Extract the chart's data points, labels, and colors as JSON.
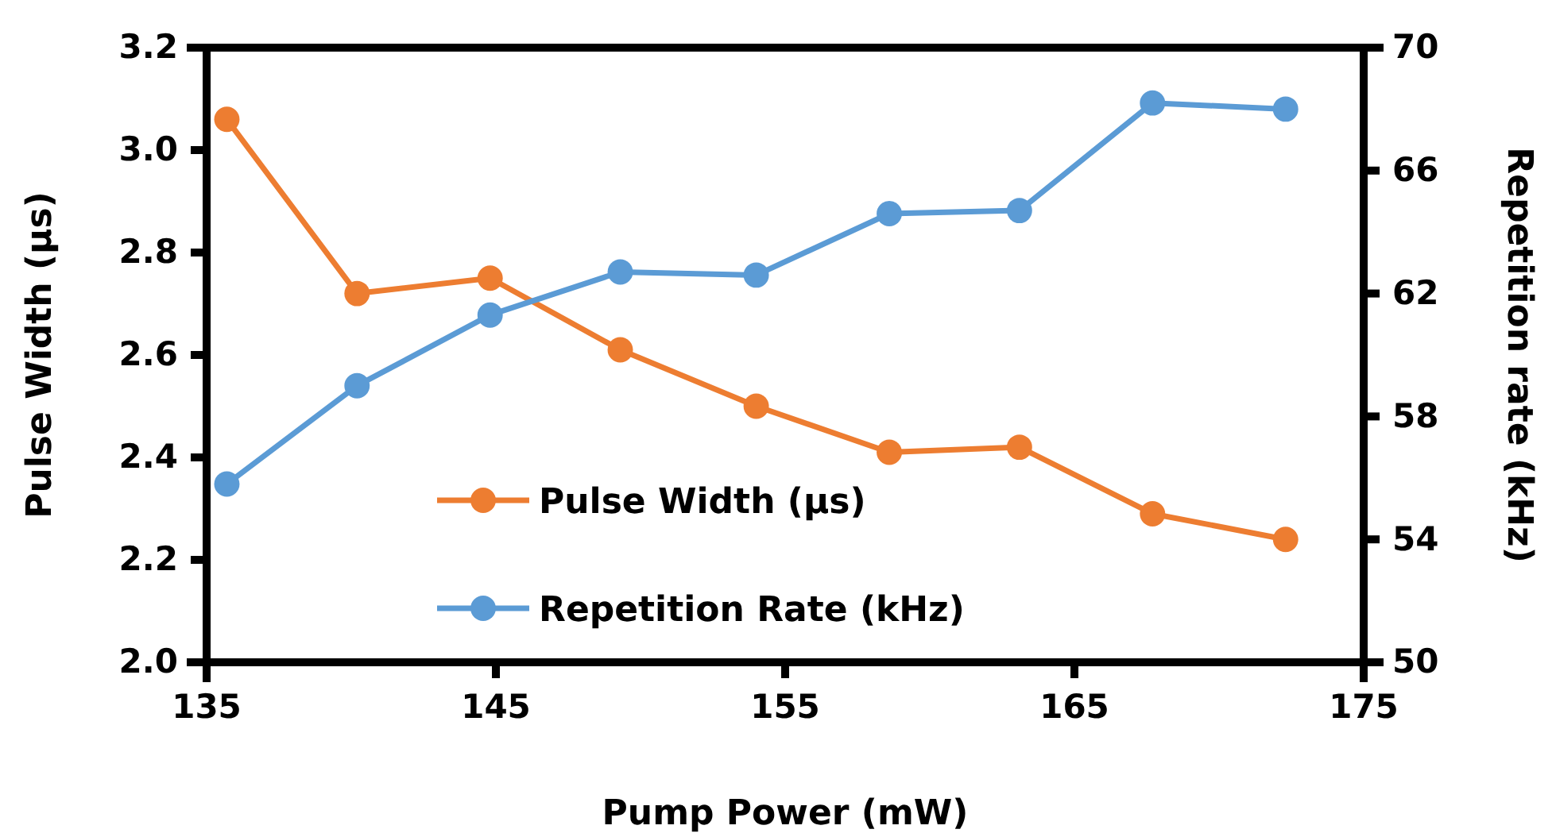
{
  "chart_data": {
    "type": "line",
    "xlabel": "Pump Power (mW)",
    "ylabel": "Pulse Width (µs)",
    "y2label": "Repetition rate (kHz)",
    "x": [
      135.7,
      140.2,
      144.8,
      149.3,
      154.0,
      158.6,
      163.1,
      167.7,
      172.3
    ],
    "series": [
      {
        "name": "Pulse Width (µs)",
        "color": "#ed7d31",
        "values": [
          3.06,
          2.72,
          2.75,
          2.61,
          2.5,
          2.41,
          2.42,
          2.29,
          2.24
        ]
      },
      {
        "name": "Repetition Rate (kHz)",
        "color": "#5b9bd5",
        "axis": "y2",
        "values": [
          55.8,
          59.0,
          61.3,
          62.7,
          62.6,
          64.6,
          64.7,
          68.2,
          68.0
        ]
      }
    ],
    "xlim": [
      135,
      175
    ],
    "xticks": [
      135,
      145,
      155,
      165,
      175
    ],
    "ylim": [
      2.0,
      3.2
    ],
    "yticks": [
      {
        "value": 2.0,
        "label": "2.0"
      },
      {
        "value": 2.2,
        "label": "2.2"
      },
      {
        "value": 2.4,
        "label": "2.4"
      },
      {
        "value": 2.6,
        "label": "2.6"
      },
      {
        "value": 2.8,
        "label": "2.8"
      },
      {
        "value": 3.0,
        "label": "3.0"
      },
      {
        "value": 3.2,
        "label": "3.2"
      }
    ],
    "y2lim": [
      50,
      70
    ],
    "y2ticks": [
      50,
      54,
      58,
      62,
      66,
      70
    ],
    "legend": "bottom",
    "marker": "circle",
    "line_style": "solid",
    "grid": false
  }
}
